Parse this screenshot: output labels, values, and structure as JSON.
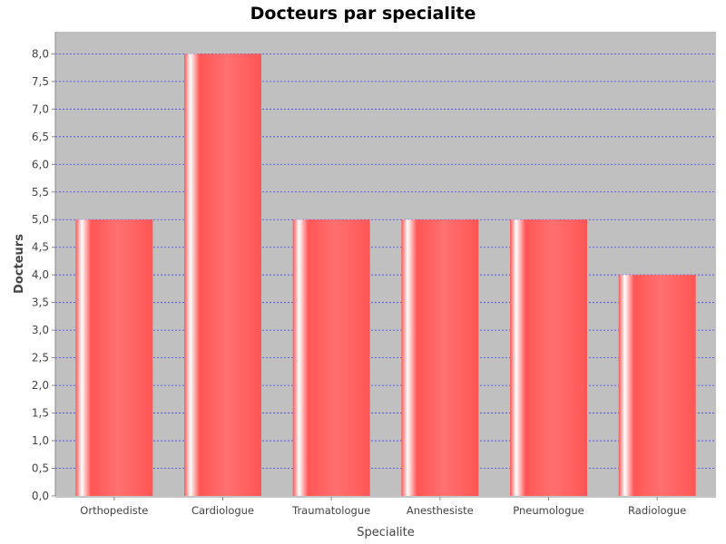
{
  "colors": {
    "plot_background": "#c0c0c0",
    "gridline": "#4040ff",
    "bar_main": "#ff5555",
    "bar_highlight": "#ffffff",
    "axis_line": "#888888"
  },
  "chart_data": {
    "type": "bar",
    "title": "Docteurs par specialite",
    "xlabel": "Specialite",
    "ylabel": "Docteurs",
    "categories": [
      "Orthopediste",
      "Cardiologue",
      "Traumatologue",
      "Anesthesiste",
      "Pneumologue",
      "Radiologue"
    ],
    "values": [
      5,
      8,
      5,
      5,
      5,
      4
    ],
    "ylim": [
      0,
      8.4
    ],
    "yticks": [
      "0,0",
      "0,5",
      "1,0",
      "1,5",
      "2,0",
      "2,5",
      "3,0",
      "3,5",
      "4,0",
      "4,5",
      "5,0",
      "5,5",
      "6,0",
      "6,5",
      "7,0",
      "7,5",
      "8,0"
    ],
    "grid": true,
    "grid_style": "dashed",
    "legend": false
  }
}
